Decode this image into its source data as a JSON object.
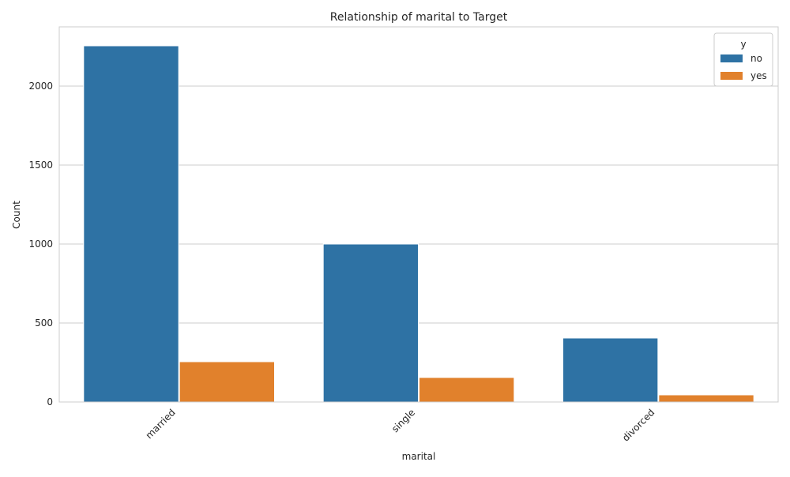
{
  "chart_data": {
    "type": "bar",
    "title": "Relationship of marital to Target",
    "xlabel": "marital",
    "ylabel": "Count",
    "categories": [
      "married",
      "single",
      "divorced"
    ],
    "series": [
      {
        "name": "no",
        "color": "#2e72a4",
        "values": [
          2255,
          1000,
          405
        ]
      },
      {
        "name": "yes",
        "color": "#e1812c",
        "values": [
          255,
          155,
          45
        ]
      }
    ],
    "ylim": [
      0,
      2375
    ],
    "yticks": [
      0,
      500,
      1000,
      1500,
      2000
    ],
    "grid": true,
    "legend": {
      "title": "y",
      "position": "top-right"
    },
    "xtick_rotation": 45
  }
}
